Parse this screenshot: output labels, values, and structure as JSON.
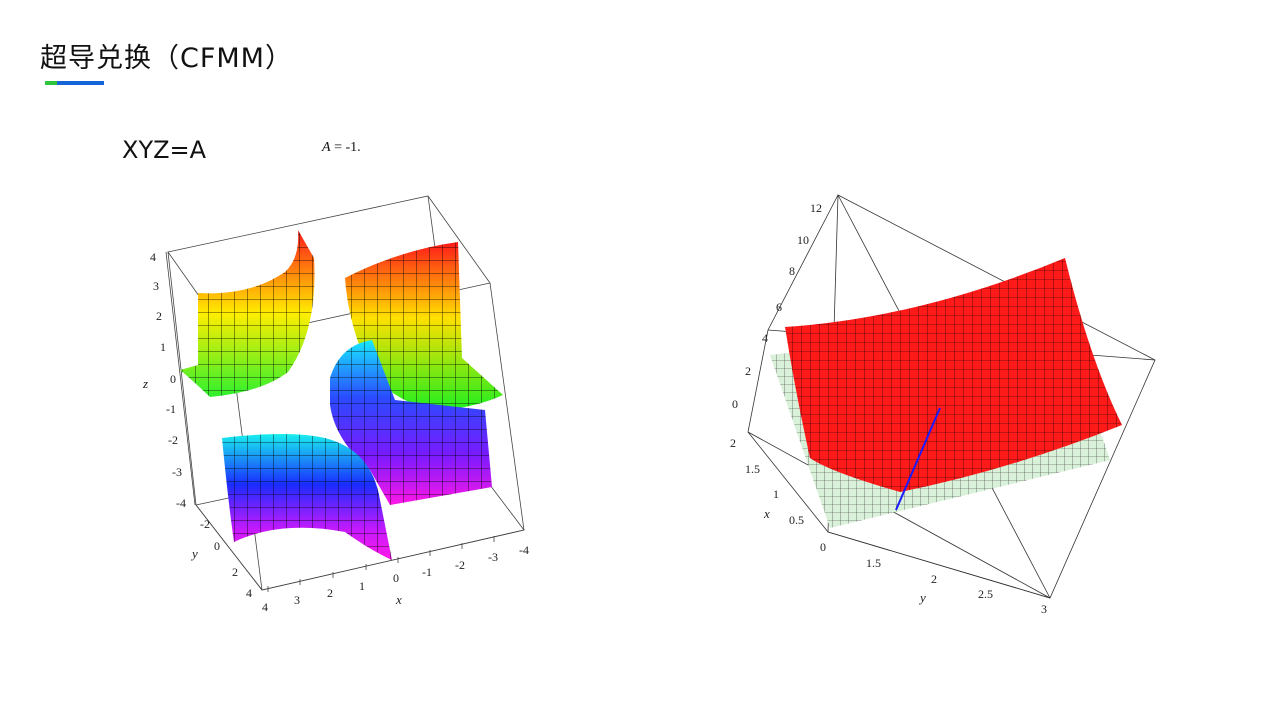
{
  "slide": {
    "title": "超导兑换（CFMM）",
    "accent_colors": [
      "#2ec43c",
      "#1565d8"
    ],
    "equation": "XYZ=A",
    "param_name": "A",
    "param_rest": "= -1."
  },
  "plot_left": {
    "z_axis_label": "z",
    "x_axis_label": "x",
    "y_axis_label": "y",
    "z_ticks": [
      "4",
      "3",
      "2",
      "1",
      "0",
      "-1",
      "-2",
      "-3",
      "-4"
    ],
    "x_ticks": [
      "1",
      "0",
      "-1",
      "-2",
      "-3",
      "-4"
    ],
    "y_ticks": [
      "-4",
      "-2",
      "0",
      "2",
      "4"
    ],
    "bottom_ticks": [
      "4",
      "3",
      "2"
    ]
  },
  "plot_right": {
    "z_ticks": [
      "12",
      "10",
      "8",
      "6",
      "4",
      "2",
      "0"
    ],
    "x_axis_label": "x",
    "x_ticks": [
      "2",
      "1.5",
      "1",
      "0.5",
      "0"
    ],
    "y_axis_label": "y",
    "y_ticks": [
      "1.5",
      "2",
      "2.5",
      "3"
    ]
  }
}
